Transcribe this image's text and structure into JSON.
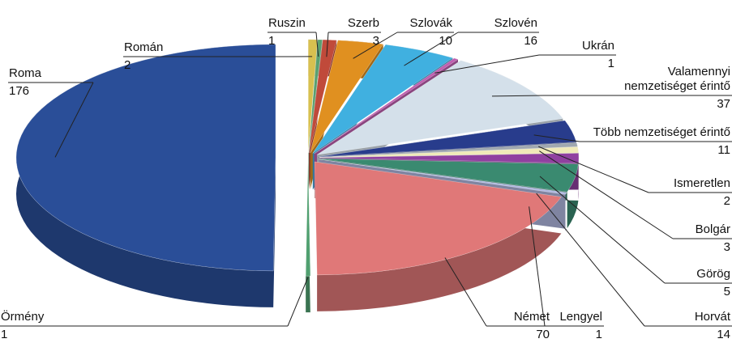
{
  "chart_data": {
    "type": "pie",
    "categories": [
      "Román",
      "Ruszin",
      "Szerb",
      "Szlovák",
      "Szlovén",
      "Ukrán",
      "Valamennyi nemzetiséget érintő",
      "Több nemzetiséget érintő",
      "Ismeretlen",
      "Bolgár",
      "Görög",
      "Horvát",
      "Lengyel",
      "Német",
      "Örmény",
      "Roma"
    ],
    "values": [
      2,
      1,
      3,
      10,
      16,
      1,
      37,
      11,
      2,
      3,
      5,
      14,
      1,
      70,
      1,
      176
    ],
    "colors": [
      "#d8c050",
      "#5aa070",
      "#c04a3a",
      "#e09020",
      "#40b0e0",
      "#c060b0",
      "#d4e0ea",
      "#283c8c",
      "#a0a8b0",
      "#f0eab8",
      "#9040a0",
      "#3a8a70",
      "#b0b8e0",
      "#e07878",
      "#50a070",
      "#2a4e98"
    ]
  }
}
